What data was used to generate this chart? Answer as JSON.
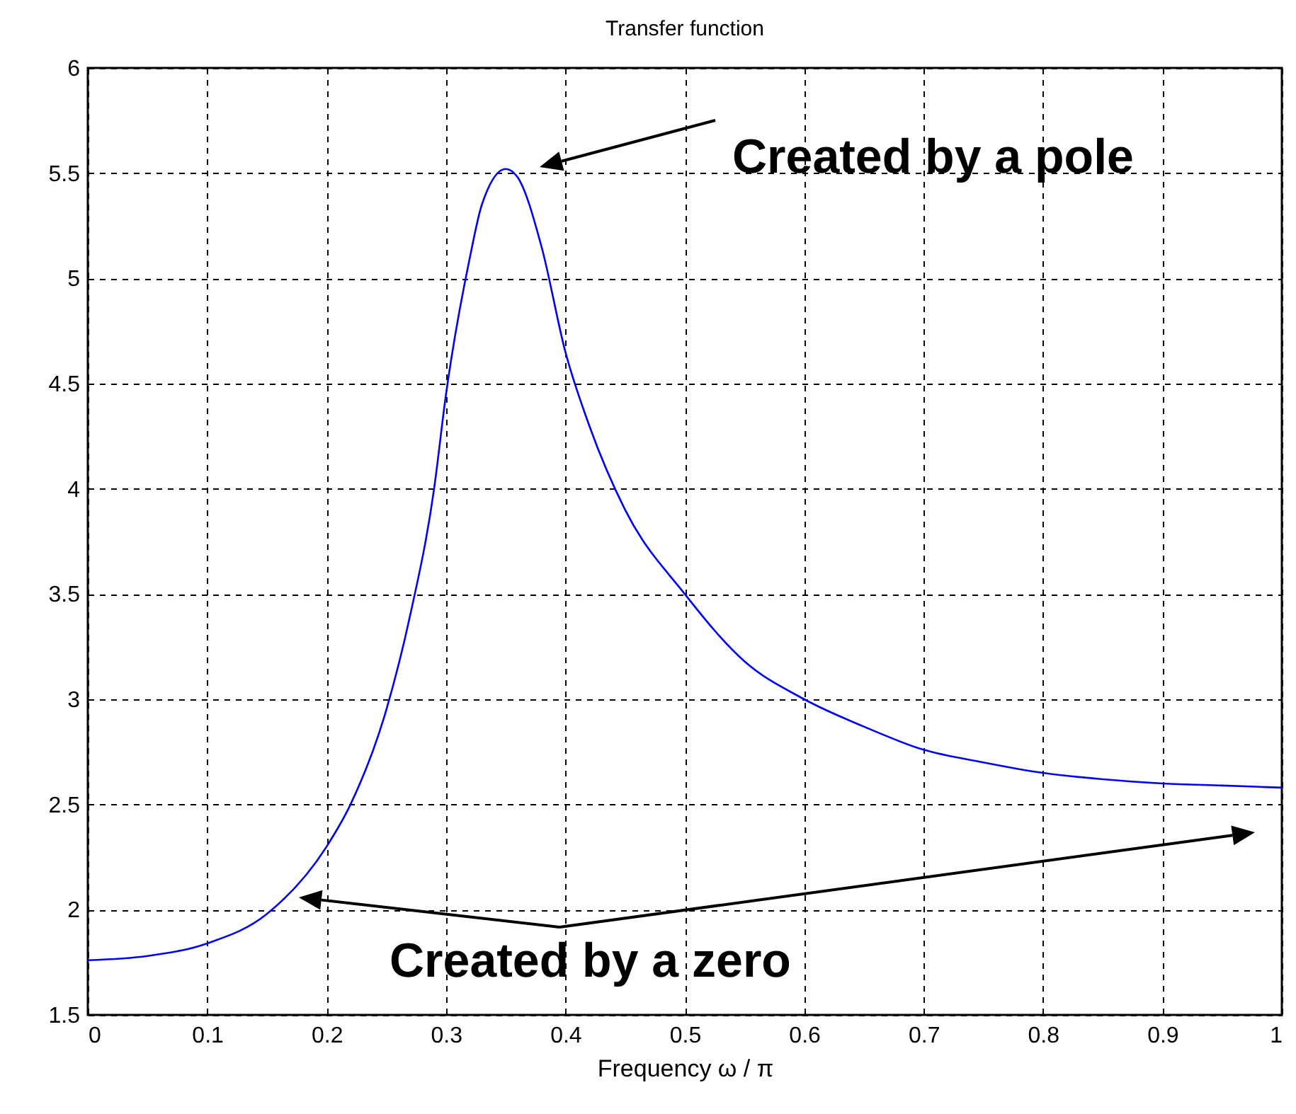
{
  "chart_data": {
    "type": "line",
    "title": "Transfer function",
    "xlabel": "Frequency ω / π",
    "x": [
      0,
      0.05,
      0.1,
      0.15,
      0.2,
      0.22,
      0.25,
      0.27,
      0.29,
      0.3,
      0.32,
      0.33,
      0.35,
      0.36,
      0.38,
      0.4,
      0.42,
      0.45,
      0.5,
      0.55,
      0.6,
      0.65,
      0.7,
      0.75,
      0.8,
      0.85,
      0.9,
      0.95,
      1.0
    ],
    "series": [
      {
        "color": "#0000ff",
        "values": [
          1.76,
          1.78,
          1.84,
          1.98,
          2.3,
          2.5,
          2.95,
          3.4,
          4.0,
          4.45,
          5.1,
          5.35,
          5.52,
          5.48,
          5.15,
          4.65,
          4.3,
          3.9,
          3.5,
          3.18,
          3.0,
          2.87,
          2.76,
          2.7,
          2.65,
          2.62,
          2.6,
          2.59,
          2.58
        ]
      }
    ],
    "xlim": [
      0,
      1
    ],
    "xticks": [
      0,
      0.1,
      0.2,
      0.3,
      0.4,
      0.5,
      0.6,
      0.7,
      0.8,
      0.9,
      1
    ],
    "ylim": [
      1.5,
      6
    ],
    "yticks": [
      1.5,
      2,
      2.5,
      3,
      3.5,
      4,
      4.5,
      5,
      5.5,
      6
    ],
    "grid": true,
    "line_style": "solid",
    "marker": "none",
    "annotations": [
      "Created by a pole",
      "Created by a zero"
    ]
  }
}
